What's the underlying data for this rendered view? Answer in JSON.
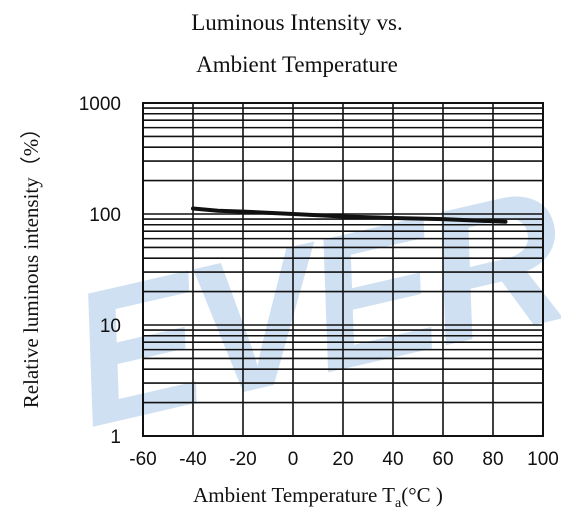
{
  "chart_data": {
    "type": "line",
    "title_line1": "Luminous Intensity vs.",
    "title_line2": "Ambient Temperature",
    "xlabel_main": "Ambient Temperature T",
    "xlabel_sub": "a",
    "xlabel_unit": "(°C )",
    "ylabel": "Relative luminous intensity（%）",
    "xlim": [
      -60,
      100
    ],
    "ylim": [
      1,
      1000
    ],
    "yscale": "log",
    "grid": true,
    "x_ticks": [
      -60,
      -40,
      -20,
      0,
      20,
      40,
      60,
      80,
      100
    ],
    "x_tick_labels": [
      "-60",
      "-40",
      "-20",
      "0",
      "20",
      "40",
      "60",
      "80",
      "100"
    ],
    "y_ticks": [
      1,
      10,
      100,
      1000
    ],
    "y_tick_labels": [
      "1",
      "10",
      "100",
      "1000"
    ],
    "series": [
      {
        "x": [
          -40,
          -30,
          -20,
          0,
          20,
          40,
          60,
          75,
          85
        ],
        "y": [
          112,
          107,
          105,
          100,
          95,
          92,
          90,
          87,
          85
        ]
      }
    ],
    "watermark": "EVER",
    "watermark_color": "#cfe0f2"
  }
}
